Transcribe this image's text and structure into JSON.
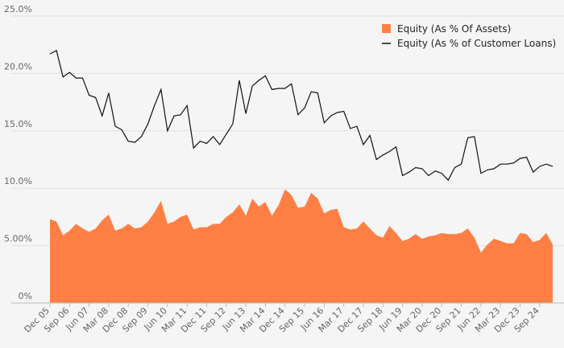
{
  "chart_data": {
    "type": "area",
    "x_tick_labels": [
      "Dec 05",
      "Sep 06",
      "Jun 07",
      "Mar 08",
      "Dec 08",
      "Sep 09",
      "Jun 10",
      "Mar 11",
      "Dec 11",
      "Sep 12",
      "Jun 13",
      "Mar 14",
      "Dec 14",
      "Sep 15",
      "Jun 16",
      "Mar 17",
      "Dec 17",
      "Sep 18",
      "Jun 19",
      "Mar 20",
      "Dec 20",
      "Sep 21",
      "Jun 22",
      "Mar 23",
      "Dec 23",
      "Sep 24"
    ],
    "y_tick_labels": [
      "0%",
      "5.00%",
      "10.0%",
      "15.0%",
      "20.0%",
      "25.0%"
    ],
    "ylim": [
      0,
      25
    ],
    "grid": true,
    "legend_position": "top-right",
    "colors": {
      "area": "#ff7f45",
      "line": "#111111",
      "grid": "#e0e0e0",
      "axis": "#bbbbbb"
    },
    "series": [
      {
        "name": "Equity (As % Of Assets)",
        "kind": "area",
        "values": [
          7.3,
          7.1,
          5.9,
          6.3,
          6.9,
          6.5,
          6.2,
          6.5,
          7.2,
          7.7,
          6.3,
          6.5,
          6.9,
          6.5,
          6.6,
          7.1,
          7.9,
          8.9,
          6.9,
          7.1,
          7.5,
          7.7,
          6.4,
          6.6,
          6.6,
          6.9,
          6.9,
          7.5,
          7.9,
          8.6,
          7.6,
          9.1,
          8.4,
          8.8,
          7.6,
          8.5,
          9.9,
          9.4,
          8.3,
          8.4,
          9.6,
          9.1,
          7.8,
          8.1,
          8.2,
          6.6,
          6.4,
          6.5,
          7.1,
          6.5,
          5.9,
          5.7,
          6.7,
          6.1,
          5.4,
          5.6,
          6.0,
          5.6,
          5.8,
          5.9,
          6.1,
          6.0,
          6.0,
          6.1,
          6.5,
          5.7,
          4.4,
          5.1,
          5.6,
          5.4,
          5.2,
          5.2,
          6.1,
          6.0,
          5.3,
          5.5,
          6.1,
          5.1
        ]
      },
      {
        "name": "Equity (As % of Customer Loans)",
        "kind": "line",
        "values": [
          21.7,
          22.0,
          19.7,
          20.1,
          19.6,
          19.6,
          18.1,
          17.9,
          16.3,
          18.3,
          15.4,
          15.1,
          14.1,
          14.0,
          14.5,
          15.6,
          17.2,
          18.6,
          15.0,
          16.3,
          16.4,
          17.2,
          13.5,
          14.1,
          13.9,
          14.5,
          13.8,
          14.7,
          15.6,
          19.4,
          16.5,
          18.9,
          19.4,
          19.8,
          18.6,
          18.7,
          18.7,
          19.1,
          16.4,
          17.0,
          18.4,
          18.3,
          15.7,
          16.3,
          16.6,
          16.7,
          15.2,
          15.4,
          13.8,
          14.6,
          12.5,
          12.9,
          13.2,
          13.6,
          11.1,
          11.4,
          11.8,
          11.7,
          11.1,
          11.5,
          11.3,
          10.7,
          11.8,
          12.1,
          14.4,
          14.5,
          11.3,
          11.6,
          11.7,
          12.1,
          12.1,
          12.2,
          12.6,
          12.7,
          11.4,
          11.9,
          12.1,
          11.9
        ]
      }
    ]
  }
}
